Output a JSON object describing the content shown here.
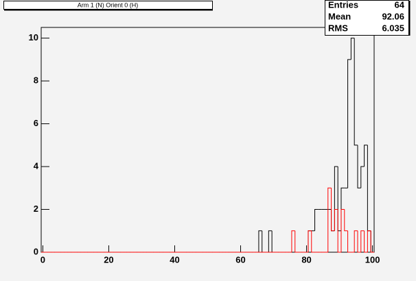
{
  "chart_data": {
    "type": "histogram",
    "title": "Arm 1 (N) Orient 0 (H)",
    "stats": {
      "labels": [
        "Entries",
        "Mean",
        "RMS"
      ],
      "values": [
        64,
        92.06,
        6.035
      ]
    },
    "bins": [
      -0.5,
      0.5,
      1.5,
      2.5,
      3.5,
      4.5,
      5.5,
      6.5,
      7.5,
      8.5,
      9.5,
      10.5,
      11.5,
      12.5,
      13.5,
      14.5,
      15.5,
      16.5,
      17.5,
      18.5,
      19.5,
      20.5,
      21.5,
      22.5,
      23.5,
      24.5,
      25.5,
      26.5,
      27.5,
      28.5,
      29.5,
      30.5,
      31.5,
      32.5,
      33.5,
      34.5,
      35.5,
      36.5,
      37.5,
      38.5,
      39.5,
      40.5,
      41.5,
      42.5,
      43.5,
      44.5,
      45.5,
      46.5,
      47.5,
      48.5,
      49.5,
      50.5,
      51.5,
      52.5,
      53.5,
      54.5,
      55.5,
      56.5,
      57.5,
      58.5,
      59.5,
      60.5,
      61.5,
      62.5,
      63.5,
      64.5,
      65.5,
      66.5,
      67.5,
      68.5,
      69.5,
      70.5,
      71.5,
      72.5,
      73.5,
      74.5,
      75.5,
      76.5,
      77.5,
      78.5,
      79.5,
      80.5,
      81.5,
      82.5,
      83.5,
      84.5,
      85.5,
      86.5,
      87.5,
      88.5,
      89.5,
      90.5,
      91.5,
      92.5,
      93.5,
      94.5,
      95.5,
      96.5,
      97.5,
      98.5,
      99.5,
      100.5
    ],
    "series": [
      {
        "color": "#000000",
        "values": [
          0,
          0,
          0,
          0,
          0,
          0,
          0,
          0,
          0,
          0,
          0,
          0,
          0,
          0,
          0,
          0,
          0,
          0,
          0,
          0,
          0,
          0,
          0,
          0,
          0,
          0,
          0,
          0,
          0,
          0,
          0,
          0,
          0,
          0,
          0,
          0,
          0,
          0,
          0,
          0,
          0,
          0,
          0,
          0,
          0,
          0,
          0,
          0,
          0,
          0,
          0,
          0,
          0,
          0,
          0,
          0,
          0,
          0,
          0,
          0,
          0,
          0,
          0,
          0,
          0,
          0,
          1,
          0,
          0,
          1,
          0,
          0,
          0,
          0,
          0,
          0,
          0,
          0,
          0,
          0,
          0,
          1,
          1,
          2,
          2,
          2,
          2,
          2,
          1,
          4,
          1,
          3,
          3,
          9,
          10,
          5,
          3,
          4,
          5,
          1,
          0
        ]
      },
      {
        "color": "#ff0000",
        "values": [
          0,
          0,
          0,
          0,
          0,
          0,
          0,
          0,
          0,
          0,
          0,
          0,
          0,
          0,
          0,
          0,
          0,
          0,
          0,
          0,
          0,
          0,
          0,
          0,
          0,
          0,
          0,
          0,
          0,
          0,
          0,
          0,
          0,
          0,
          0,
          0,
          0,
          0,
          0,
          0,
          0,
          0,
          0,
          0,
          0,
          0,
          0,
          0,
          0,
          0,
          0,
          0,
          0,
          0,
          0,
          0,
          0,
          0,
          0,
          0,
          0,
          0,
          0,
          0,
          0,
          0,
          0,
          0,
          0,
          0,
          0,
          0,
          0,
          0,
          0,
          0,
          1,
          0,
          0,
          0,
          0,
          1,
          0,
          0,
          0,
          0,
          0,
          3,
          1,
          2,
          0,
          2,
          1,
          0,
          0,
          1,
          0,
          1,
          0,
          1,
          0
        ]
      }
    ],
    "xlim": [
      -0.5,
      100.5
    ],
    "xticks": [
      0,
      20,
      40,
      60,
      80,
      100
    ],
    "ylim": [
      0,
      10.5
    ],
    "yticks": [
      0,
      2,
      4,
      6,
      8,
      10
    ]
  }
}
